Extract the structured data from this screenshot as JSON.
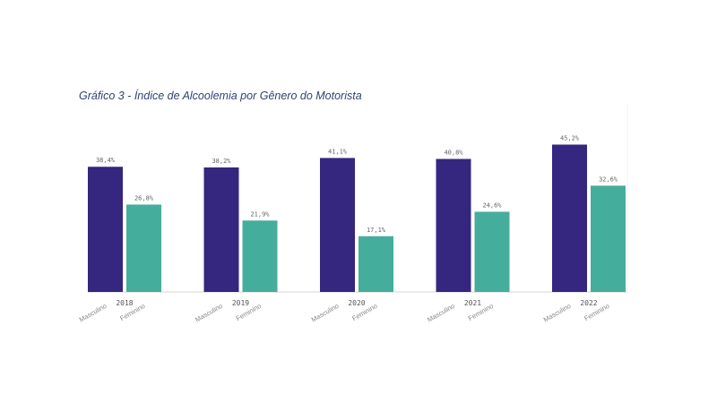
{
  "chart_data": {
    "type": "bar",
    "title": "Gráfico 3 - Índice de Alcoolemia por Gênero do Motorista",
    "categories": [
      "2018",
      "2019",
      "2020",
      "2021",
      "2022"
    ],
    "series": [
      {
        "name": "Masculino",
        "color": "#35267f",
        "values": [
          38.4,
          38.2,
          41.1,
          40.8,
          45.2
        ],
        "labels": [
          "38,4%",
          "38,2%",
          "41,1%",
          "40,8%",
          "45,2%"
        ]
      },
      {
        "name": "Feminino",
        "color": "#45ad9b",
        "values": [
          26.8,
          21.9,
          17.1,
          24.6,
          32.6
        ],
        "labels": [
          "26,8%",
          "21,9%",
          "17,1%",
          "24,6%",
          "32,6%"
        ]
      }
    ],
    "ylim": [
      0,
      50
    ],
    "grid": false,
    "legend": "none"
  }
}
